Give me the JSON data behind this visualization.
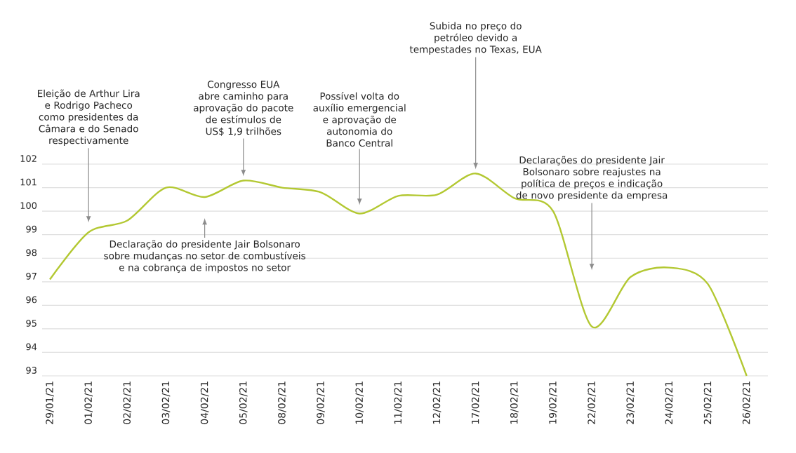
{
  "chart_data": {
    "type": "line",
    "categories": [
      "29/01/21",
      "01/02/21",
      "02/02/21",
      "03/02/21",
      "04/02/21",
      "05/02/21",
      "08/02/21",
      "09/02/21",
      "10/02/21",
      "11/02/21",
      "12/02/21",
      "17/02/21",
      "18/02/21",
      "19/02/21",
      "22/02/21",
      "23/02/21",
      "24/02/21",
      "25/02/21",
      "26/02/21"
    ],
    "values": [
      97.1,
      99.1,
      99.6,
      101.0,
      100.6,
      101.3,
      101.0,
      100.8,
      99.9,
      100.65,
      100.7,
      101.6,
      100.55,
      100.0,
      95.1,
      97.2,
      97.6,
      96.9,
      93.0
    ],
    "color": "#b3c832",
    "ylim": [
      93,
      102
    ],
    "yticks": [
      93,
      94,
      95,
      96,
      97,
      98,
      99,
      100,
      101,
      102
    ],
    "grid": "y",
    "annotations": [
      "Eleição de Arthur Lira e Rodrigo Pacheco como presidentes da Câmara e do Senado respectivamente",
      "Declaração do presidente Jair Bolsonaro sobre mudanças no setor de combustíveis e na cobrança de impostos no setor",
      {
        "text": "Congresso EUA abre caminho para aprovação do pacote de estímulos de US$ 1,9 trilhões",
        "x": "05/02/21",
        "y": 101.3
      },
      "Possível volta do auxílio emergencial e aprovação de autonomia do Banco Central",
      {
        "text": "Subida no preço do petróleo devido a tempestades no Texas, EUA",
        "x": "17/02/21",
        "y": 101.6
      },
      "Declarações do presidente Jair Bolsonaro sobre reajustes na política de preços e indicação de novo presidente da empresa"
    ]
  }
}
